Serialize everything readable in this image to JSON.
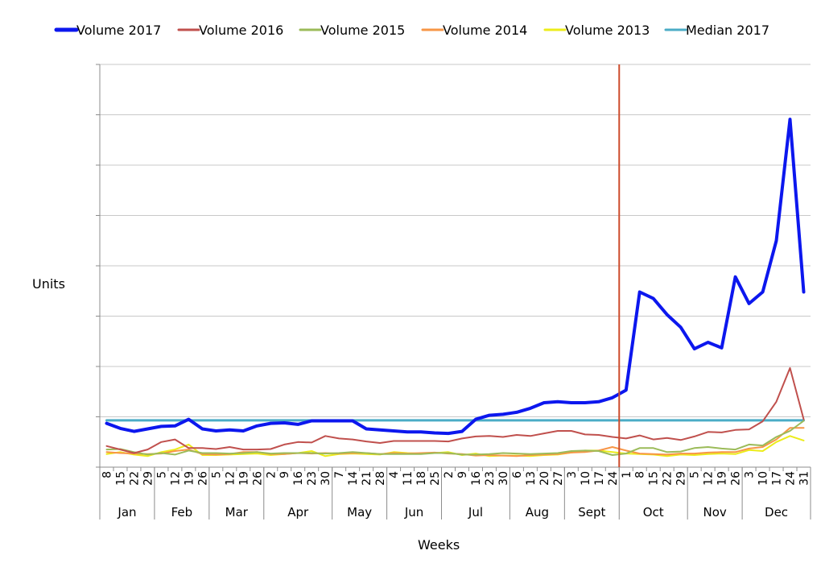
{
  "chart_data": {
    "type": "line",
    "xlabel": "Weeks",
    "ylabel": "Units",
    "y_tick_labels_shown": false,
    "grid": "horizontal",
    "legend_position": "top",
    "x": [
      "8",
      "15",
      "22",
      "29",
      "5",
      "12",
      "19",
      "26",
      "5",
      "12",
      "19",
      "26",
      "2",
      "9",
      "16",
      "23",
      "30",
      "7",
      "14",
      "21",
      "28",
      "4",
      "11",
      "18",
      "25",
      "2",
      "9",
      "16",
      "23",
      "30",
      "6",
      "13",
      "20",
      "27",
      "3",
      "10",
      "17",
      "24",
      "1",
      "8",
      "15",
      "22",
      "29",
      "5",
      "12",
      "19",
      "26",
      "3",
      "10",
      "17",
      "24",
      "31"
    ],
    "months": [
      {
        "label": "Jan",
        "start": 0,
        "end": 4
      },
      {
        "label": "Feb",
        "start": 4,
        "end": 8
      },
      {
        "label": "Mar",
        "start": 8,
        "end": 12
      },
      {
        "label": "Apr",
        "start": 12,
        "end": 17
      },
      {
        "label": "May",
        "start": 17,
        "end": 21
      },
      {
        "label": "Jun",
        "start": 21,
        "end": 25
      },
      {
        "label": "Jul",
        "start": 25,
        "end": 30
      },
      {
        "label": "Aug",
        "start": 30,
        "end": 34
      },
      {
        "label": "Sept",
        "start": 34,
        "end": 38
      },
      {
        "label": "Oct",
        "start": 38,
        "end": 43
      },
      {
        "label": "Nov",
        "start": 43,
        "end": 47
      },
      {
        "label": "Dec",
        "start": 47,
        "end": 52
      }
    ],
    "ylim": [
      0,
      8
    ],
    "marker_line": {
      "after_index": 37.5,
      "color": "#cc4b2c"
    },
    "series": [
      {
        "name": "Volume 2017",
        "color": "#0c17ee",
        "width": 4,
        "values": [
          0.87,
          0.77,
          0.71,
          0.76,
          0.81,
          0.82,
          0.95,
          0.76,
          0.72,
          0.74,
          0.72,
          0.82,
          0.87,
          0.88,
          0.85,
          0.92,
          0.92,
          0.92,
          0.92,
          0.76,
          0.74,
          0.72,
          0.7,
          0.7,
          0.68,
          0.67,
          0.71,
          0.95,
          1.03,
          1.05,
          1.09,
          1.17,
          1.28,
          1.3,
          1.28,
          1.28,
          1.3,
          1.38,
          1.53,
          3.48,
          3.35,
          3.03,
          2.78,
          2.35,
          2.48,
          2.37,
          3.78,
          3.25,
          3.48,
          4.5,
          6.91,
          3.48
        ]
      },
      {
        "name": "Volume 2016",
        "color": "#c0504d",
        "width": 2,
        "values": [
          0.42,
          0.35,
          0.28,
          0.35,
          0.5,
          0.55,
          0.38,
          0.38,
          0.36,
          0.4,
          0.35,
          0.35,
          0.36,
          0.45,
          0.5,
          0.49,
          0.62,
          0.57,
          0.55,
          0.51,
          0.48,
          0.52,
          0.52,
          0.52,
          0.52,
          0.51,
          0.57,
          0.61,
          0.62,
          0.6,
          0.64,
          0.62,
          0.67,
          0.72,
          0.72,
          0.65,
          0.64,
          0.6,
          0.57,
          0.63,
          0.55,
          0.58,
          0.54,
          0.61,
          0.7,
          0.69,
          0.74,
          0.75,
          0.91,
          1.3,
          1.97,
          0.95
        ]
      },
      {
        "name": "Volume 2015",
        "color": "#9bbb59",
        "width": 2,
        "values": [
          0.35,
          0.36,
          0.3,
          0.25,
          0.28,
          0.25,
          0.33,
          0.28,
          0.28,
          0.27,
          0.28,
          0.3,
          0.27,
          0.28,
          0.28,
          0.28,
          0.27,
          0.28,
          0.3,
          0.28,
          0.26,
          0.26,
          0.26,
          0.26,
          0.28,
          0.28,
          0.25,
          0.25,
          0.26,
          0.28,
          0.27,
          0.26,
          0.27,
          0.28,
          0.32,
          0.33,
          0.32,
          0.24,
          0.27,
          0.38,
          0.38,
          0.3,
          0.31,
          0.38,
          0.4,
          0.37,
          0.35,
          0.45,
          0.43,
          0.6,
          0.72,
          0.92
        ]
      },
      {
        "name": "Volume 2014",
        "color": "#f79646",
        "width": 2,
        "values": [
          0.3,
          0.28,
          0.27,
          0.26,
          0.27,
          0.32,
          0.35,
          0.26,
          0.25,
          0.26,
          0.3,
          0.3,
          0.26,
          0.26,
          0.28,
          0.27,
          0.28,
          0.27,
          0.28,
          0.28,
          0.26,
          0.28,
          0.27,
          0.28,
          0.29,
          0.27,
          0.26,
          0.23,
          0.24,
          0.23,
          0.22,
          0.24,
          0.25,
          0.26,
          0.29,
          0.3,
          0.33,
          0.4,
          0.33,
          0.27,
          0.26,
          0.25,
          0.27,
          0.27,
          0.29,
          0.3,
          0.3,
          0.37,
          0.4,
          0.55,
          0.78,
          0.78
        ]
      },
      {
        "name": "Volume 2013",
        "color": "#ecec1a",
        "width": 2,
        "values": [
          0.26,
          0.3,
          0.25,
          0.22,
          0.3,
          0.35,
          0.45,
          0.24,
          0.24,
          0.25,
          0.26,
          0.27,
          0.24,
          0.26,
          0.28,
          0.32,
          0.22,
          0.26,
          0.27,
          0.26,
          0.25,
          0.3,
          0.28,
          0.27,
          0.28,
          0.3,
          0.24,
          0.27,
          0.22,
          0.23,
          0.23,
          0.22,
          0.24,
          0.25,
          0.29,
          0.33,
          0.33,
          0.3,
          0.27,
          0.26,
          0.25,
          0.22,
          0.25,
          0.24,
          0.26,
          0.27,
          0.26,
          0.34,
          0.32,
          0.5,
          0.62,
          0.53
        ]
      },
      {
        "name": "Median 2017",
        "color": "#4bacc6",
        "width": 3,
        "values": [
          0.93,
          0.93,
          0.93,
          0.93,
          0.93,
          0.93,
          0.93,
          0.93,
          0.93,
          0.93,
          0.93,
          0.93,
          0.93,
          0.93,
          0.93,
          0.93,
          0.93,
          0.93,
          0.93,
          0.93,
          0.93,
          0.93,
          0.93,
          0.93,
          0.93,
          0.93,
          0.93,
          0.93,
          0.93,
          0.93,
          0.93,
          0.93,
          0.93,
          0.93,
          0.93,
          0.93,
          0.93,
          0.93,
          0.93,
          0.93,
          0.93,
          0.93,
          0.93,
          0.93,
          0.93,
          0.93,
          0.93,
          0.93,
          0.93,
          0.93,
          0.93,
          0.93
        ]
      }
    ]
  }
}
